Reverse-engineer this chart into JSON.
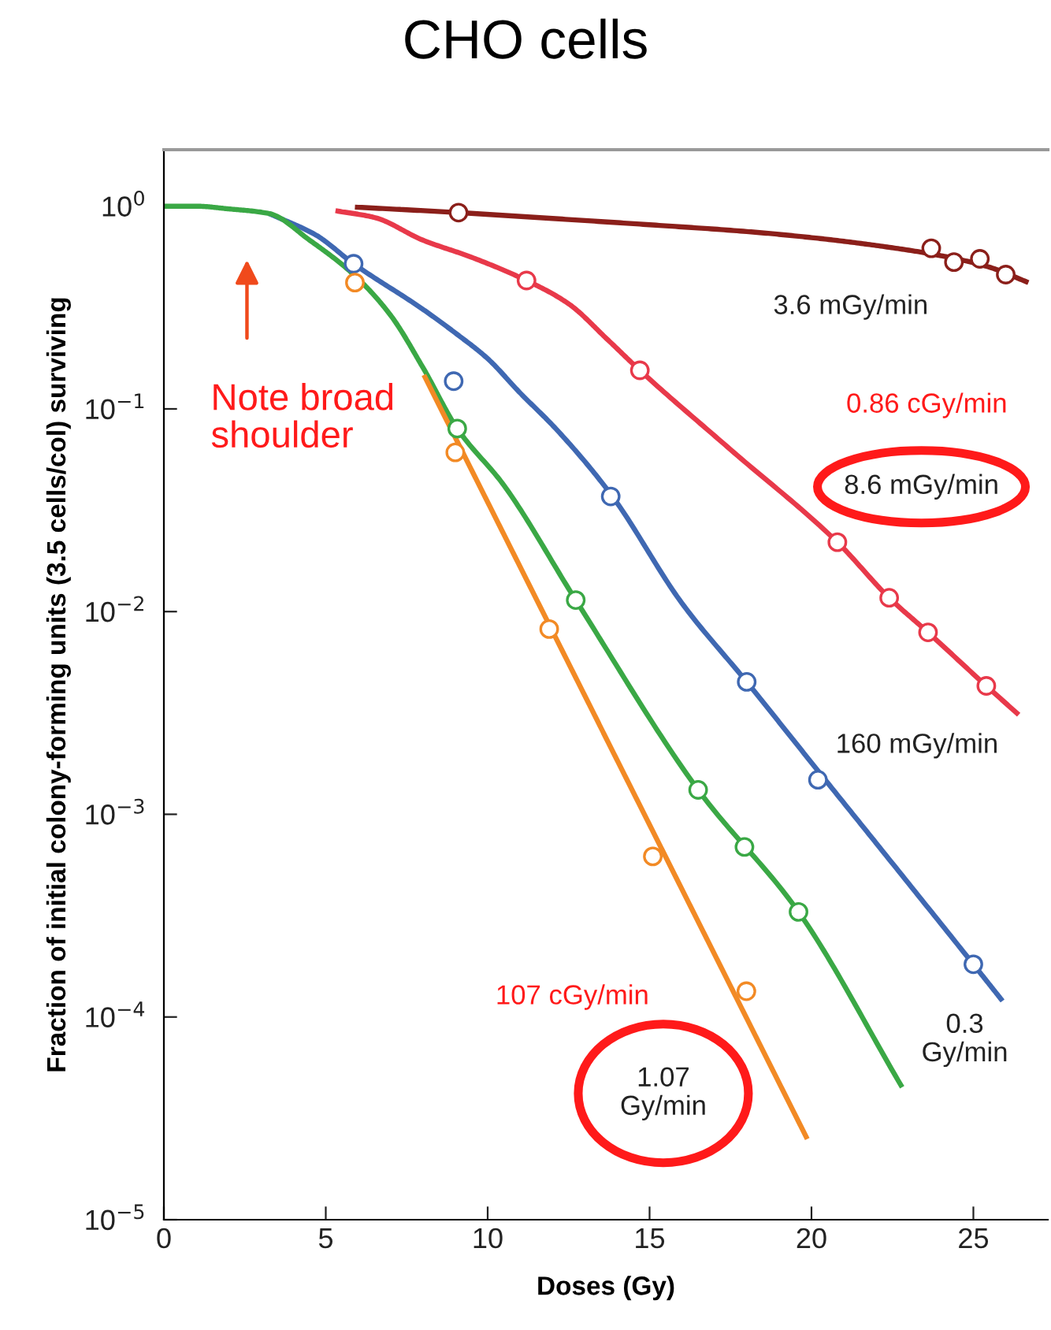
{
  "chart_data": {
    "type": "line",
    "title": "CHO cells",
    "xlabel": "Doses (Gy)",
    "ylabel": "Fraction of initial colony-forming units (3.5 cells/col) surviving",
    "log": "y",
    "xlim": [
      0,
      27.3
    ],
    "ylim": [
      1e-05,
      1.9
    ],
    "xticks": [
      0,
      5,
      10,
      15,
      20,
      25
    ],
    "yticks": [
      {
        "value": 1,
        "label": "10$^{0}$"
      },
      {
        "value": 0.1,
        "label": "10$^{−1}$"
      },
      {
        "value": 0.01,
        "label": "10$^{−2}$"
      },
      {
        "value": 0.001,
        "label": "10$^{−3}$"
      },
      {
        "value": 0.0001,
        "label": "10$^{−4}$"
      },
      {
        "value": 1e-05,
        "label": "10$^{−5}$"
      }
    ],
    "line_style": "solid",
    "series": [
      {
        "color": "#8b1f1a",
        "x": [
          5.9,
          9.1,
          12,
          15,
          18,
          20,
          22,
          24,
          25.5,
          26.7
        ],
        "values": [
          0.99,
          0.93,
          0.87,
          0.81,
          0.75,
          0.7,
          0.64,
          0.57,
          0.5,
          0.42
        ]
      },
      {
        "type": "scatter",
        "marker": "circle",
        "color": "#8b1f1a",
        "x": [
          9.1,
          23.7,
          24.4,
          25.2,
          26.0
        ],
        "values": [
          0.93,
          0.62,
          0.53,
          0.55,
          0.46
        ]
      },
      {
        "color": "#e8394a",
        "x": [
          5.3,
          6.5,
          8,
          9.5,
          11.2,
          12.5,
          13.7,
          14.7,
          17.5,
          20.8,
          22.4,
          23.6,
          25.4,
          26.4
        ],
        "values": [
          0.95,
          0.88,
          0.68,
          0.56,
          0.43,
          0.33,
          0.22,
          0.155,
          0.063,
          0.022,
          0.0117,
          0.0079,
          0.0043,
          0.0031
        ]
      },
      {
        "type": "scatter",
        "marker": "circle",
        "color": "#e8394a",
        "x": [
          11.2,
          14.7,
          20.8,
          22.4,
          23.6,
          25.4
        ],
        "values": [
          0.43,
          0.155,
          0.022,
          0.0117,
          0.0079,
          0.0043
        ]
      },
      {
        "color": "#3f68b2",
        "x": [
          3.25,
          4.7,
          5.86,
          8,
          9,
          10,
          11,
          12.1,
          13.8,
          16,
          18,
          20.2,
          22,
          25,
          25.9
        ],
        "values": [
          0.92,
          0.72,
          0.52,
          0.31,
          0.237,
          0.177,
          0.12,
          0.08,
          0.038,
          0.011,
          0.0045,
          0.00164,
          0.00072,
          0.000182,
          0.00012
        ]
      },
      {
        "type": "scatter",
        "marker": "circle",
        "color": "#3f68b2",
        "x": [
          5.86,
          8.95,
          13.8,
          18.0,
          20.2,
          25.0
        ],
        "values": [
          0.52,
          0.137,
          0.037,
          0.0045,
          0.00148,
          0.000182
        ]
      },
      {
        "color": "#3aa845",
        "x": [
          0,
          1,
          2,
          3.25,
          4.5,
          5.86,
          7,
          8,
          9.06,
          10.5,
          12.72,
          16.5,
          19.6,
          22.8
        ],
        "values": [
          1.0,
          1.0,
          0.97,
          0.92,
          0.68,
          0.46,
          0.29,
          0.16,
          0.08,
          0.042,
          0.0114,
          0.00132,
          0.00033,
          4.5e-05
        ]
      },
      {
        "type": "scatter",
        "marker": "circle",
        "color": "#3aa845",
        "x": [
          9.06,
          12.72,
          16.5,
          17.93,
          19.6
        ],
        "values": [
          0.08,
          0.0114,
          0.00132,
          0.00069,
          0.00033
        ]
      },
      {
        "color": "#f28a25",
        "x": [
          8.03,
          19.87
        ],
        "values": [
          0.147,
          2.5e-05
        ]
      },
      {
        "type": "scatter",
        "marker": "circle",
        "color": "#f28a25",
        "x": [
          5.9,
          9.0,
          11.9,
          15.1,
          17.99
        ],
        "values": [
          0.42,
          0.061,
          0.0082,
          0.00062,
          0.000134
        ]
      }
    ],
    "annotations": [
      "3.6 mGy/min",
      "0.86 cGy/min",
      "8.6 mGy/min",
      "160 mGy/min",
      "0.3\nGy/min",
      "107 cGy/min",
      "1.07\nGy/min",
      "Note broad\nshoulder"
    ]
  }
}
